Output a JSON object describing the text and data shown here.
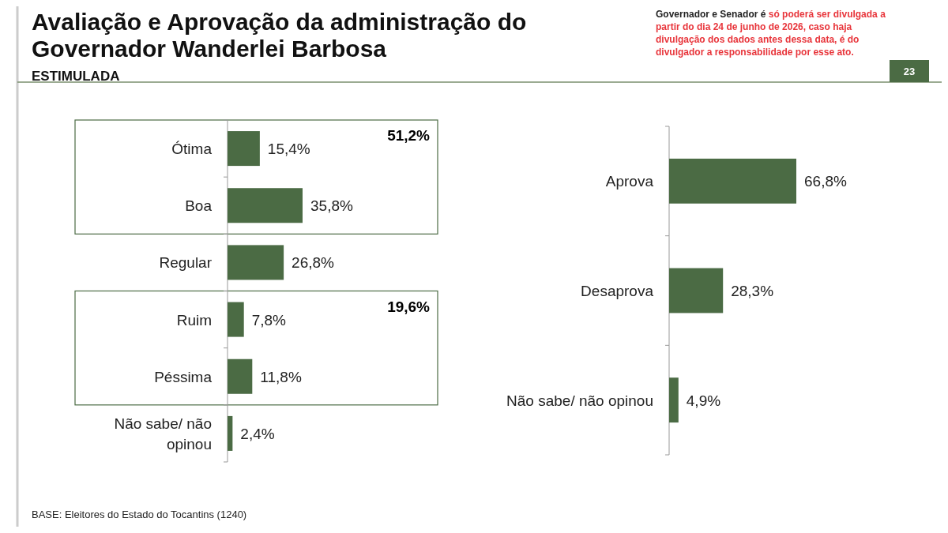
{
  "chart_data": [
    {
      "type": "bar",
      "orientation": "horizontal",
      "title": "Avaliação e Aprovação da administração do Governador Wanderlei Barbosa",
      "subtitle": "ESTIMULADA",
      "categories": [
        "Ótima",
        "Boa",
        "Regular",
        "Ruim",
        "Péssima",
        "Não sabe/ não opinou"
      ],
      "values": [
        15.4,
        35.8,
        26.8,
        7.8,
        11.8,
        2.4
      ],
      "value_labels": [
        "15,4%",
        "35,8%",
        "26,8%",
        "7,8%",
        "11,8%",
        "2,4%"
      ],
      "color": "#4b6b44",
      "annotations": [
        "51,2%",
        "19,6%",
        "Governador e Senador é",
        "só poderá ser divulgada a partir do dia 24 de junho de 2026, caso haja divulgação dos dados antes dessa data, é do divulgador a responsabilidade por esse ato.",
        "23",
        "BASE: Eleitores do Estado do Tocantins (1240)"
      ]
    },
    {
      "type": "bar",
      "orientation": "horizontal",
      "categories": [
        "Aprova",
        "Desaprova",
        "Não sabe/ não opinou"
      ],
      "values": [
        66.8,
        28.3,
        4.9
      ],
      "value_labels": [
        "66,8%",
        "28,3%",
        "4,9%"
      ],
      "color": "#4b6b44"
    }
  ]
}
